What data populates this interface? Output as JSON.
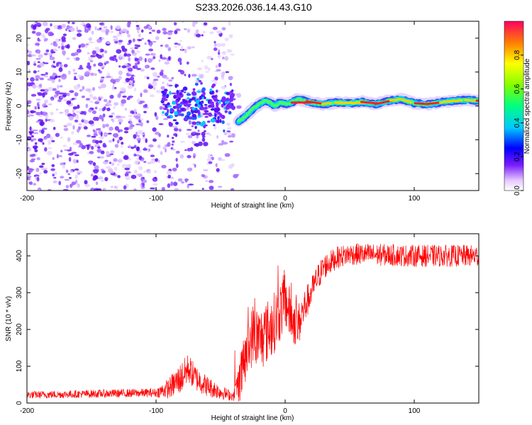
{
  "title": "S233.2026.036.14.43.G10",
  "chart_data": [
    {
      "type": "heatmap",
      "name": "spectrogram",
      "xlabel": "Height of straight line (km)",
      "ylabel": "Frequency (Hz)",
      "xlim": [
        -200,
        150
      ],
      "ylim": [
        -25,
        25
      ],
      "xticks": [
        -200,
        -100,
        0,
        100
      ],
      "yticks": [
        -20,
        -10,
        0,
        10,
        20
      ],
      "ridge": {
        "x": [
          -36,
          -32,
          -28,
          -24,
          -20,
          -16,
          -12,
          -8,
          -4,
          0,
          5,
          10,
          20,
          30,
          40,
          50,
          60,
          70,
          80,
          90,
          100,
          110,
          120,
          130,
          140,
          150
        ],
        "y": [
          -4.5,
          -3.5,
          -2.0,
          -0.5,
          0.5,
          1.5,
          1.0,
          0.0,
          1.0,
          0.5,
          1.0,
          2.0,
          1.0,
          0.5,
          1.0,
          0.8,
          1.2,
          0.5,
          1.5,
          2.0,
          0.8,
          0.5,
          1.0,
          1.5,
          1.8,
          1.5
        ]
      },
      "colorbar": {
        "label": "Normalized spectral amplitude",
        "ticks": [
          "0.0",
          "0.2",
          "0.4",
          "0.6",
          "0.8"
        ],
        "range": [
          0,
          1
        ]
      }
    },
    {
      "type": "line",
      "name": "snr",
      "xlabel": "Height of straight line (km)",
      "ylabel": "SNR (10 * v/v)",
      "xlim": [
        -200,
        150
      ],
      "ylim": [
        0,
        460
      ],
      "xticks": [
        -200,
        -100,
        0,
        100
      ],
      "yticks": [
        0,
        100,
        200,
        300,
        400
      ],
      "color": "#ff0000",
      "profile": {
        "x": [
          -200,
          -100,
          -90,
          -80,
          -75,
          -70,
          -60,
          -50,
          -40,
          -35,
          -30,
          -25,
          -20,
          -10,
          -5,
          0,
          5,
          10,
          15,
          20,
          25,
          30,
          40,
          50,
          100,
          150
        ],
        "y": [
          22,
          28,
          40,
          70,
          95,
          70,
          45,
          30,
          18,
          60,
          130,
          190,
          170,
          210,
          240,
          280,
          230,
          210,
          260,
          300,
          340,
          370,
          395,
          405,
          400,
          400
        ]
      },
      "noise_amplitude": {
        "x": [
          -200,
          -100,
          -80,
          -40,
          -35,
          -20,
          0,
          20,
          40,
          150
        ],
        "y": [
          10,
          12,
          45,
          12,
          70,
          90,
          80,
          40,
          30,
          30
        ]
      }
    }
  ]
}
